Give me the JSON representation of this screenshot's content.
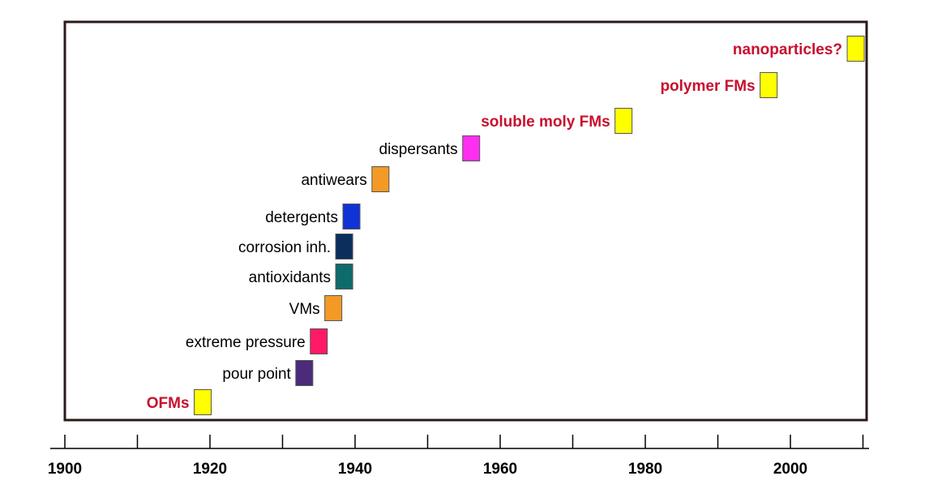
{
  "chart_data": {
    "type": "timeline",
    "xlim": [
      1900,
      2010
    ],
    "x_ticks": [
      1900,
      1910,
      1920,
      1930,
      1940,
      1950,
      1960,
      1970,
      1980,
      1990,
      2000,
      2010
    ],
    "x_tick_labels": [
      "1900",
      "1920",
      "1940",
      "1960",
      "1980",
      "2000"
    ],
    "events": [
      {
        "label": "OFMs",
        "year": 1919,
        "color": "#ffff00",
        "label_color": "#c8102e"
      },
      {
        "label": "pour point",
        "year": 1933,
        "color": "#4b2c7a",
        "label_color": "#000000"
      },
      {
        "label": "extreme pressure",
        "year": 1935,
        "color": "#ff1a66",
        "label_color": "#000000"
      },
      {
        "label": "VMs",
        "year": 1937,
        "color": "#f39a26",
        "label_color": "#000000"
      },
      {
        "label": "antioxidants",
        "year": 1938.5,
        "color": "#0e6b6b",
        "label_color": "#000000"
      },
      {
        "label": "corrosion inh.",
        "year": 1938.5,
        "color": "#0a2f5e",
        "label_color": "#000000"
      },
      {
        "label": "detergents",
        "year": 1939.5,
        "color": "#1033d6",
        "label_color": "#000000"
      },
      {
        "label": "antiwears",
        "year": 1943.5,
        "color": "#f39a26",
        "label_color": "#000000"
      },
      {
        "label": "dispersants",
        "year": 1956,
        "color": "#ff2ef0",
        "label_color": "#000000"
      },
      {
        "label": "soluble moly FMs",
        "year": 1977,
        "color": "#ffff00",
        "label_color": "#c8102e"
      },
      {
        "label": "polymer FMs",
        "year": 1997,
        "color": "#ffff00",
        "label_color": "#c8102e"
      },
      {
        "label": "nanoparticles?",
        "year": 2009,
        "color": "#ffff00",
        "label_color": "#c8102e"
      }
    ]
  }
}
